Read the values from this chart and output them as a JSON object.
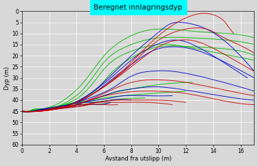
{
  "title": "Beregnet innlagringsdyp",
  "xlabel": "Avstand fra utslipp (m)",
  "ylabel": "Dyp (m)",
  "xlim": [
    0,
    17
  ],
  "ylim": [
    60,
    0
  ],
  "xticks": [
    0,
    2,
    4,
    6,
    8,
    10,
    12,
    14,
    16
  ],
  "yticks": [
    0,
    5,
    10,
    15,
    20,
    25,
    30,
    35,
    40,
    45,
    50,
    55,
    60
  ],
  "background_color": "#d8d8d8",
  "title_bg_color": "#00ffff",
  "grid_color": "#ffffff",
  "green_curves": [
    {
      "x": [
        0,
        0.5,
        1.5,
        2.5,
        3.5,
        4.5,
        5.5,
        6.5,
        8.0,
        10.0,
        12.5,
        15.0,
        17.0
      ],
      "y": [
        45,
        45,
        44,
        42,
        38,
        32,
        24,
        17,
        11,
        8,
        9,
        10,
        12
      ]
    },
    {
      "x": [
        0,
        0.5,
        1.5,
        2.5,
        3.5,
        4.5,
        5.5,
        6.5,
        8.0,
        10.0,
        12.5,
        15.0,
        17.0
      ],
      "y": [
        45,
        45,
        44,
        43,
        40,
        35,
        27,
        20,
        15,
        12,
        12,
        13,
        15
      ]
    },
    {
      "x": [
        0,
        0.5,
        1.5,
        2.5,
        3.5,
        4.5,
        5.5,
        6.5,
        8.0,
        10.0,
        12.0,
        14.5,
        17.0
      ],
      "y": [
        45,
        45,
        44,
        43,
        41,
        37,
        30,
        23,
        18,
        15,
        16,
        19,
        22
      ]
    },
    {
      "x": [
        0,
        0.5,
        1.5,
        2.5,
        3.5,
        4.5,
        5.5,
        6.5,
        8.0,
        10.0,
        12.5,
        15.0,
        17.0
      ],
      "y": [
        45,
        45,
        44,
        43,
        42,
        39,
        35,
        28,
        21,
        16,
        16,
        17,
        20
      ]
    },
    {
      "x": [
        0,
        0.5,
        1.5,
        2.5,
        3.5,
        4.5,
        5.5,
        6.5,
        8.0,
        10.0,
        12.5
      ],
      "y": [
        45,
        45,
        44,
        43,
        42,
        41,
        39,
        37,
        35,
        33,
        32
      ]
    },
    {
      "x": [
        0,
        0.5,
        1.5,
        2.5,
        3.2,
        4.0,
        5.0,
        6.0,
        7.5,
        9.5,
        12.0
      ],
      "y": [
        45,
        45,
        44,
        43,
        42,
        41,
        40,
        39,
        38,
        37,
        36
      ]
    },
    {
      "x": [
        0,
        0.5,
        1.0,
        1.8,
        2.5,
        3.2,
        4.0,
        5.0,
        6.5,
        9.0
      ],
      "y": [
        45,
        45,
        44,
        44,
        43,
        42,
        41,
        41,
        40,
        39
      ]
    },
    {
      "x": [
        0,
        0.5,
        1.0,
        1.8,
        2.5,
        3.2,
        4.0,
        5.0,
        6.5
      ],
      "y": [
        45,
        45,
        44,
        44,
        43,
        43,
        42,
        42,
        41
      ]
    }
  ],
  "blue_curves": [
    {
      "x": [
        0,
        0.8,
        2.0,
        3.5,
        5.0,
        6.5,
        8.0,
        9.5,
        10.5,
        11.5,
        13.5,
        15.5,
        17.0
      ],
      "y": [
        45,
        45,
        44,
        42,
        37,
        29,
        20,
        12,
        7,
        5,
        8,
        17,
        27
      ]
    },
    {
      "x": [
        0,
        0.8,
        2.0,
        3.5,
        5.0,
        6.5,
        8.0,
        9.5,
        11.0,
        12.5,
        14.5,
        16.5
      ],
      "y": [
        45,
        45,
        44,
        42,
        37,
        30,
        22,
        16,
        13,
        15,
        22,
        30
      ]
    },
    {
      "x": [
        0,
        0.8,
        2.0,
        3.5,
        5.0,
        6.5,
        8.0,
        9.5,
        11.0,
        13.0,
        15.5,
        17.0
      ],
      "y": [
        45,
        45,
        44,
        42,
        38,
        31,
        24,
        18,
        16,
        18,
        25,
        30
      ]
    },
    {
      "x": [
        0,
        0.8,
        2.0,
        3.5,
        5.0,
        6.5,
        7.5,
        8.5,
        9.5,
        11.0,
        13.5,
        16.5,
        17.0
      ],
      "y": [
        45,
        45,
        44,
        42,
        39,
        35,
        31,
        28,
        27,
        27,
        30,
        35,
        36
      ]
    },
    {
      "x": [
        0,
        0.8,
        2.0,
        3.5,
        5.0,
        6.0,
        7.0,
        8.0,
        9.5,
        11.5,
        14.5,
        17.0
      ],
      "y": [
        45,
        45,
        44,
        43,
        40,
        38,
        36,
        35,
        34,
        35,
        38,
        40
      ]
    },
    {
      "x": [
        0,
        0.8,
        2.0,
        3.5,
        4.5,
        5.5,
        6.5,
        7.5,
        9.0,
        11.0
      ],
      "y": [
        45,
        45,
        44,
        43,
        41,
        40,
        39,
        38,
        38,
        38
      ]
    },
    {
      "x": [
        0,
        0.8,
        1.5,
        2.5,
        3.5,
        4.5,
        5.5,
        6.5,
        8.0
      ],
      "y": [
        45,
        45,
        44,
        43,
        42,
        41,
        41,
        40,
        40
      ]
    },
    {
      "x": [
        0,
        0.8,
        1.5,
        2.5,
        3.5,
        4.5,
        5.5,
        6.5
      ],
      "y": [
        45,
        45,
        44,
        44,
        43,
        42,
        42,
        41
      ]
    }
  ],
  "red_curves": [
    {
      "x": [
        0,
        1.2,
        2.5,
        4.0,
        6.0,
        8.0,
        10.0,
        12.0,
        13.5,
        14.5,
        15.0,
        15.5
      ],
      "y": [
        45,
        45,
        44,
        41,
        34,
        23,
        11,
        3,
        1,
        3,
        6,
        10
      ]
    },
    {
      "x": [
        0,
        1.2,
        2.5,
        4.0,
        6.0,
        8.0,
        10.0,
        12.0,
        13.5,
        14.5,
        15.5,
        16.5,
        17.0
      ],
      "y": [
        45,
        45,
        44,
        41,
        34,
        24,
        13,
        8,
        8,
        11,
        14,
        17,
        19
      ]
    },
    {
      "x": [
        0,
        1.2,
        2.5,
        4.0,
        6.0,
        8.0,
        10.0,
        11.5,
        13.0,
        15.0,
        17.0
      ],
      "y": [
        45,
        45,
        44,
        41,
        34,
        25,
        16,
        13,
        14,
        20,
        27
      ]
    },
    {
      "x": [
        0,
        1.2,
        2.5,
        4.0,
        6.0,
        7.5,
        9.0,
        10.5,
        12.0,
        14.5,
        17.0
      ],
      "y": [
        45,
        45,
        44,
        42,
        37,
        33,
        31,
        31,
        32,
        35,
        38
      ]
    },
    {
      "x": [
        0,
        1.2,
        2.5,
        4.0,
        5.5,
        7.0,
        8.5,
        10.0,
        12.0,
        14.5,
        17.0
      ],
      "y": [
        45,
        45,
        44,
        42,
        39,
        37,
        36,
        36,
        37,
        40,
        42
      ]
    },
    {
      "x": [
        0,
        1.2,
        2.5,
        4.0,
        5.5,
        7.0,
        8.5,
        10.0,
        12.0
      ],
      "y": [
        45,
        45,
        44,
        43,
        41,
        40,
        40,
        40,
        41
      ]
    },
    {
      "x": [
        0,
        1.0,
        2.0,
        3.0,
        4.5,
        5.5,
        6.5,
        7.5,
        9.0,
        11.0
      ],
      "y": [
        45,
        45,
        44,
        43,
        42,
        41,
        41,
        41,
        41,
        42
      ]
    },
    {
      "x": [
        0,
        1.0,
        2.0,
        3.0,
        4.0,
        5.0,
        6.0,
        7.0
      ],
      "y": [
        45,
        45,
        44,
        43,
        43,
        42,
        42,
        42
      ]
    }
  ]
}
